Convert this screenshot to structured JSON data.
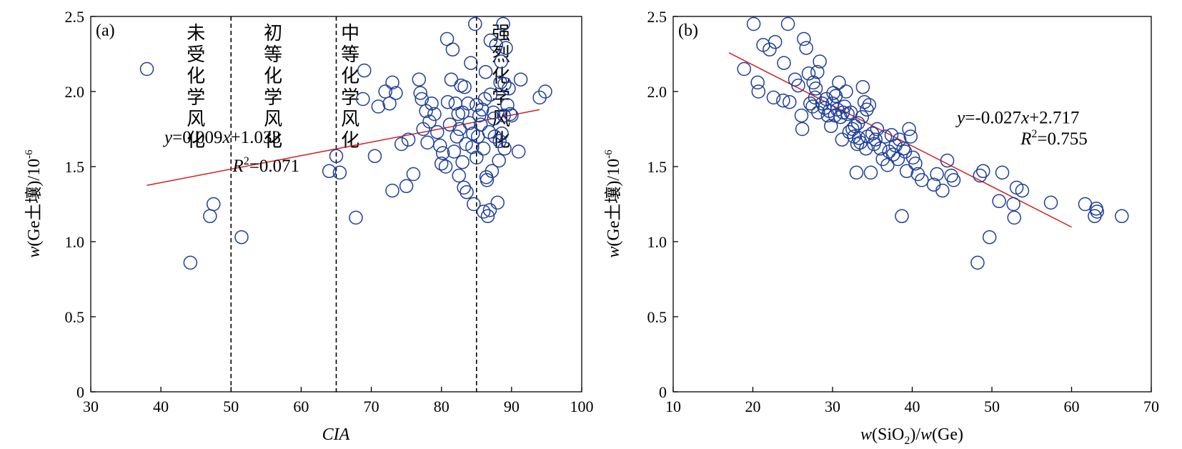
{
  "chart_data": [
    {
      "type": "scatter",
      "panel_label": "(a)",
      "xlabel": "CIA",
      "ylabel_prefix": "w",
      "ylabel_rest": "(Ge土壤)/10",
      "ylabel_exp": "-6",
      "xlim": [
        30,
        100
      ],
      "ylim": [
        0,
        2.5
      ],
      "xticks": [
        "30",
        "40",
        "50",
        "60",
        "70",
        "80",
        "90",
        "100"
      ],
      "yticks": [
        "0",
        "0.5",
        "1.0",
        "1.5",
        "2.0",
        "2.5"
      ],
      "colors": {
        "points": "#1f3f99",
        "fit": "#d42020",
        "divider": "#000000"
      },
      "dividers": [
        50,
        65,
        85
      ],
      "zones": [
        {
          "label": "未受化学风化",
          "x": 45
        },
        {
          "label": "初等化学风化",
          "x": 56
        },
        {
          "label": "中等化学风化",
          "x": 67
        },
        {
          "label": "强烈化学风化",
          "x": 88.5
        }
      ],
      "fit": {
        "slope": 0.009,
        "intercept": 1.033,
        "x": [
          38,
          94
        ]
      },
      "equation": {
        "y": "y",
        "body": "=0.009",
        "x": "x",
        "tail": "+1.033",
        "eqx": 48.8,
        "eqy": 1.7,
        "r": "R",
        "rexp": "2",
        "rtail": "=0.071",
        "rx": 55,
        "ry": 1.51
      },
      "points": [
        [
          38,
          2.15
        ],
        [
          44.2,
          0.86
        ],
        [
          47,
          1.17
        ],
        [
          47.5,
          1.25
        ],
        [
          51.5,
          1.03
        ],
        [
          64,
          1.47
        ],
        [
          65,
          1.57
        ],
        [
          65.5,
          1.46
        ],
        [
          67.8,
          1.16
        ],
        [
          69,
          2.14
        ],
        [
          68.8,
          1.95
        ],
        [
          70.5,
          1.57
        ],
        [
          71,
          1.9
        ],
        [
          72,
          2.0
        ],
        [
          72.6,
          1.92
        ],
        [
          73,
          2.06
        ],
        [
          73,
          1.34
        ],
        [
          73.5,
          1.99
        ],
        [
          74.3,
          1.65
        ],
        [
          75,
          1.37
        ],
        [
          75.3,
          1.68
        ],
        [
          76,
          1.45
        ],
        [
          76.8,
          2.08
        ],
        [
          77,
          1.99
        ],
        [
          77.2,
          1.95
        ],
        [
          77.4,
          1.75
        ],
        [
          77.8,
          1.87
        ],
        [
          78,
          1.66
        ],
        [
          78.3,
          1.8
        ],
        [
          78.6,
          1.92
        ],
        [
          79,
          1.85
        ],
        [
          79.4,
          1.73
        ],
        [
          79.8,
          1.64
        ],
        [
          80,
          1.52
        ],
        [
          80.2,
          1.59
        ],
        [
          80.6,
          1.5
        ],
        [
          80.8,
          2.35
        ],
        [
          80.9,
          1.93
        ],
        [
          81.2,
          1.78
        ],
        [
          81.4,
          2.08
        ],
        [
          81.6,
          2.28
        ],
        [
          81.8,
          1.6
        ],
        [
          82,
          1.92
        ],
        [
          82.2,
          1.7
        ],
        [
          82.4,
          1.85
        ],
        [
          82.5,
          1.44
        ],
        [
          82.6,
          1.75
        ],
        [
          82.8,
          2.04
        ],
        [
          83,
          1.53
        ],
        [
          83,
          1.86
        ],
        [
          83.2,
          1.36
        ],
        [
          83.3,
          2.03
        ],
        [
          83.5,
          1.65
        ],
        [
          83.6,
          1.33
        ],
        [
          83.8,
          1.92
        ],
        [
          84,
          1.79
        ],
        [
          84.2,
          2.19
        ],
        [
          84.4,
          1.63
        ],
        [
          84.5,
          1.72
        ],
        [
          84.6,
          1.25
        ],
        [
          84.8,
          2.45
        ],
        [
          85,
          1.91
        ],
        [
          85,
          1.56
        ],
        [
          85.2,
          1.7
        ],
        [
          85.4,
          1.84
        ],
        [
          85.6,
          1.78
        ],
        [
          85.8,
          1.88
        ],
        [
          86,
          1.62
        ],
        [
          86,
          1.2
        ],
        [
          86.2,
          1.95
        ],
        [
          86.3,
          2.13
        ],
        [
          86.4,
          1.43
        ],
        [
          86.5,
          1.41
        ],
        [
          86.6,
          1.17
        ],
        [
          86.8,
          1.73
        ],
        [
          86.9,
          1.21
        ],
        [
          87,
          1.98
        ],
        [
          87,
          2.34
        ],
        [
          87.2,
          1.47
        ],
        [
          87.4,
          1.86
        ],
        [
          87.5,
          1.82
        ],
        [
          87.6,
          1.7
        ],
        [
          87.8,
          2.31
        ],
        [
          88,
          1.26
        ],
        [
          88.2,
          1.54
        ],
        [
          88.3,
          1.67
        ],
        [
          88.4,
          2.06
        ],
        [
          88.5,
          2.2
        ],
        [
          88.6,
          1.72
        ],
        [
          88.8,
          2.45
        ],
        [
          88.9,
          1.84
        ],
        [
          89,
          1.62
        ],
        [
          89,
          2.05
        ],
        [
          89.2,
          2.29
        ],
        [
          89.4,
          1.91
        ],
        [
          89.6,
          2.02
        ],
        [
          89.8,
          1.85
        ],
        [
          90,
          1.84
        ],
        [
          91,
          1.6
        ],
        [
          91.3,
          2.08
        ],
        [
          94,
          1.96
        ],
        [
          94.8,
          2.0
        ]
      ]
    },
    {
      "type": "scatter",
      "panel_label": "(b)",
      "xlabel_w1": "w",
      "xlabel_mid": "(SiO",
      "xlabel_sub": "2",
      "xlabel_mid2": ")/",
      "xlabel_w2": "w",
      "xlabel_tail": "(Ge)",
      "ylabel_prefix": "w",
      "ylabel_rest": "(Ge土壤)/10",
      "ylabel_exp": "-6",
      "xlim": [
        10,
        70
      ],
      "ylim": [
        0,
        2.5
      ],
      "xticks": [
        "10",
        "20",
        "30",
        "40",
        "50",
        "60",
        "70"
      ],
      "yticks": [
        "0",
        "0.5",
        "1.0",
        "1.5",
        "2.0",
        "2.5"
      ],
      "colors": {
        "points": "#1f3f99",
        "fit": "#d42020"
      },
      "fit": {
        "slope": -0.027,
        "intercept": 2.717,
        "x": [
          17,
          60
        ]
      },
      "equation": {
        "y": "y",
        "body": "=-0.027",
        "x": "x",
        "tail": "+2.717",
        "eqx": 53.3,
        "eqy": 1.83,
        "r": "R",
        "rexp": "2",
        "rtail": "=0.755",
        "rx": 57.8,
        "ry": 1.69
      },
      "points": [
        [
          18.9,
          2.15
        ],
        [
          20.1,
          2.45
        ],
        [
          20.6,
          2.06
        ],
        [
          20.7,
          2.0
        ],
        [
          21.3,
          2.31
        ],
        [
          22.1,
          2.28
        ],
        [
          22.6,
          1.96
        ],
        [
          22.8,
          2.33
        ],
        [
          23.8,
          1.94
        ],
        [
          23.9,
          2.19
        ],
        [
          24.4,
          2.45
        ],
        [
          24.6,
          1.93
        ],
        [
          25.3,
          2.08
        ],
        [
          25.7,
          2.04
        ],
        [
          26.1,
          1.84
        ],
        [
          26.2,
          1.75
        ],
        [
          26.4,
          2.35
        ],
        [
          26.7,
          2.29
        ],
        [
          27,
          2.12
        ],
        [
          27.2,
          1.92
        ],
        [
          27.5,
          1.9
        ],
        [
          27.6,
          2.06
        ],
        [
          27.8,
          1.96
        ],
        [
          27.9,
          2.02
        ],
        [
          28.1,
          2.13
        ],
        [
          28.2,
          1.86
        ],
        [
          28.4,
          2.2
        ],
        [
          28.7,
          1.92
        ],
        [
          29,
          1.89
        ],
        [
          29.2,
          1.95
        ],
        [
          29.4,
          1.84
        ],
        [
          29.6,
          1.87
        ],
        [
          29.8,
          1.77
        ],
        [
          30,
          1.92
        ],
        [
          30.1,
          1.99
        ],
        [
          30.3,
          1.84
        ],
        [
          30.4,
          1.97
        ],
        [
          30.6,
          1.88
        ],
        [
          30.8,
          2.06
        ],
        [
          31,
          1.83
        ],
        [
          31.2,
          1.68
        ],
        [
          31.3,
          1.86
        ],
        [
          31.5,
          1.9
        ],
        [
          31.7,
          2.0
        ],
        [
          31.9,
          1.85
        ],
        [
          32.1,
          1.73
        ],
        [
          32.3,
          1.86
        ],
        [
          32.5,
          1.75
        ],
        [
          32.7,
          1.7
        ],
        [
          32.8,
          1.77
        ],
        [
          33,
          1.46
        ],
        [
          33.1,
          1.65
        ],
        [
          33.2,
          1.79
        ],
        [
          33.3,
          1.69
        ],
        [
          33.5,
          1.66
        ],
        [
          33.7,
          1.83
        ],
        [
          33.8,
          2.03
        ],
        [
          34,
          1.93
        ],
        [
          34.2,
          1.62
        ],
        [
          34.3,
          1.88
        ],
        [
          34.4,
          1.7
        ],
        [
          34.6,
          1.91
        ],
        [
          34.8,
          1.46
        ],
        [
          35,
          1.72
        ],
        [
          35.2,
          1.65
        ],
        [
          35.4,
          1.68
        ],
        [
          35.6,
          1.75
        ],
        [
          36,
          1.62
        ],
        [
          36.3,
          1.55
        ],
        [
          36.6,
          1.7
        ],
        [
          36.9,
          1.51
        ],
        [
          37.1,
          1.6
        ],
        [
          37.4,
          1.71
        ],
        [
          37.6,
          1.58
        ],
        [
          37.9,
          1.64
        ],
        [
          38.2,
          1.55
        ],
        [
          38.4,
          1.68
        ],
        [
          38.7,
          1.17
        ],
        [
          38.9,
          1.62
        ],
        [
          39.1,
          1.6
        ],
        [
          39.3,
          1.47
        ],
        [
          39.6,
          1.75
        ],
        [
          39.8,
          1.7
        ],
        [
          40.1,
          1.56
        ],
        [
          40.4,
          1.52
        ],
        [
          40.7,
          1.45
        ],
        [
          41.2,
          1.41
        ],
        [
          42.7,
          1.38
        ],
        [
          43.1,
          1.45
        ],
        [
          43.8,
          1.34
        ],
        [
          44.4,
          1.54
        ],
        [
          44.9,
          1.44
        ],
        [
          45.2,
          1.41
        ],
        [
          48.2,
          0.86
        ],
        [
          48.5,
          1.44
        ],
        [
          48.9,
          1.47
        ],
        [
          49.7,
          1.03
        ],
        [
          50.9,
          1.27
        ],
        [
          51.3,
          1.46
        ],
        [
          52.7,
          1.25
        ],
        [
          52.8,
          1.16
        ],
        [
          53.1,
          1.36
        ],
        [
          53.8,
          1.34
        ],
        [
          57.4,
          1.26
        ],
        [
          61.7,
          1.25
        ],
        [
          62.9,
          1.17
        ],
        [
          63.1,
          1.22
        ],
        [
          63.2,
          1.2
        ],
        [
          66.3,
          1.17
        ]
      ]
    }
  ]
}
